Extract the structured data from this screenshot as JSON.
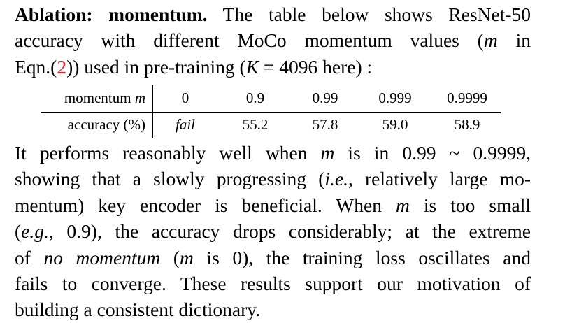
{
  "paragraph_top": {
    "lead_in": "Ablation: momentum.",
    "line1_rest": " The table below shows ResNet-50",
    "line2": "accuracy with different MoCo momentum values (",
    "line2_var": "m",
    "line2_end": " in",
    "line3_start": "Eqn.(",
    "line3_ref": "2",
    "line3_mid": ")) used in pre-training (",
    "line3_var": "K",
    "line3_end": " = 4096 here) :"
  },
  "table": {
    "header_label": "momentum ",
    "header_var": "m",
    "row_label": "accuracy (%)",
    "momentum_values": [
      "0",
      "0.9",
      "0.99",
      "0.999",
      "0.9999"
    ],
    "accuracy_values": [
      "fail",
      "55.2",
      "57.8",
      "59.0",
      "58.9"
    ]
  },
  "paragraph_bottom": {
    "l1a": "It performs reasonably well when ",
    "l1var": "m",
    "l1b": " is in 0.99 ~ 0.9999,",
    "l2a": "showing that a slowly progressing (",
    "l2ie": "i.e.",
    "l2b": ", relatively large mo-",
    "l3a": "mentum) key encoder is beneficial.  When ",
    "l3var": "m",
    "l3b": " is too small",
    "l4a": "(",
    "l4eg": "e.g.",
    "l4b": ", 0.9), the accuracy drops considerably; at the extreme",
    "l5a": "of ",
    "l5nm": "no momentum",
    "l5b": " (",
    "l5var": "m",
    "l5c": " is 0), the training loss oscillates and",
    "l6": "fails to converge.  These results support our motivation of",
    "l7": "building a consistent dictionary."
  }
}
